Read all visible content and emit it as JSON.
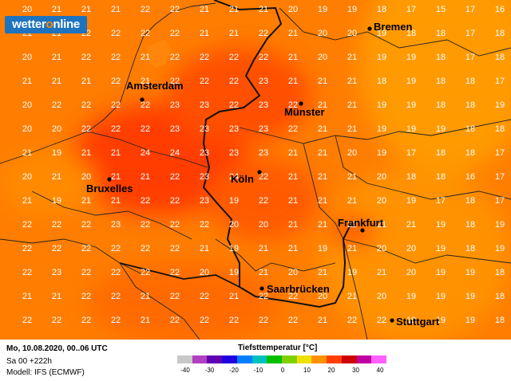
{
  "brand": {
    "prefix": "wetter",
    "accent": "o",
    "suffix": "nline"
  },
  "footer": {
    "date_line": "Mo, 10.08.2020, 00..06 UTC",
    "run_line": "Sa 00 +222h",
    "model_line": "Modell: IFS (ECMWF)"
  },
  "legend": {
    "title": "Tiefsttemperatur [°C]",
    "ticks": [
      "-40",
      "-30",
      "-20",
      "-10",
      "0",
      "10",
      "20",
      "30",
      "40"
    ],
    "colors": [
      "#c8c8c8",
      "#b040c0",
      "#6000b0",
      "#2000e0",
      "#0080ff",
      "#00c0c0",
      "#00c000",
      "#80d000",
      "#f0e000",
      "#ff9000",
      "#ff4000",
      "#d00000",
      "#c000a0",
      "#ff60ff"
    ]
  },
  "cities": [
    {
      "name": "Bremen"
    },
    {
      "name": "Amsterdam"
    },
    {
      "name": "Münster"
    },
    {
      "name": "Köln"
    },
    {
      "name": "Bruxelles"
    },
    {
      "name": "Frankfurt"
    },
    {
      "name": "Saarbrücken"
    },
    {
      "name": "Stuttgart"
    }
  ],
  "grid_values": [
    [
      "20",
      "21",
      "21",
      "21",
      "22",
      "22",
      "21",
      "21",
      "21",
      "20",
      "19",
      "19",
      "18",
      "17",
      "15",
      "17",
      "16"
    ],
    [
      "21",
      "21",
      "22",
      "22",
      "22",
      "22",
      "21",
      "21",
      "22",
      "21",
      "20",
      "20",
      "19",
      "18",
      "18",
      "17",
      "18"
    ],
    [
      "20",
      "21",
      "22",
      "22",
      "21",
      "22",
      "22",
      "22",
      "22",
      "21",
      "20",
      "21",
      "19",
      "19",
      "18",
      "17",
      "18"
    ],
    [
      "21",
      "21",
      "21",
      "22",
      "21",
      "22",
      "22",
      "22",
      "23",
      "21",
      "21",
      "21",
      "18",
      "19",
      "18",
      "18",
      "17"
    ],
    [
      "20",
      "22",
      "22",
      "22",
      "22",
      "23",
      "23",
      "22",
      "23",
      "22",
      "21",
      "21",
      "19",
      "19",
      "18",
      "18",
      "19"
    ],
    [
      "20",
      "20",
      "22",
      "22",
      "22",
      "23",
      "23",
      "23",
      "23",
      "22",
      "21",
      "21",
      "19",
      "19",
      "19",
      "18",
      "18"
    ],
    [
      "21",
      "19",
      "21",
      "21",
      "24",
      "24",
      "23",
      "23",
      "23",
      "21",
      "21",
      "20",
      "19",
      "17",
      "18",
      "18",
      "17"
    ],
    [
      "20",
      "21",
      "20",
      "21",
      "21",
      "22",
      "23",
      "24",
      "22",
      "21",
      "21",
      "21",
      "20",
      "18",
      "18",
      "16",
      "17"
    ],
    [
      "21",
      "19",
      "21",
      "21",
      "22",
      "22",
      "23",
      "19",
      "22",
      "21",
      "21",
      "21",
      "20",
      "19",
      "17",
      "18",
      "17"
    ],
    [
      "22",
      "22",
      "22",
      "23",
      "22",
      "22",
      "22",
      "20",
      "20",
      "21",
      "21",
      "22",
      "21",
      "21",
      "19",
      "18",
      "19"
    ],
    [
      "22",
      "22",
      "22",
      "22",
      "22",
      "22",
      "21",
      "19",
      "21",
      "21",
      "19",
      "21",
      "20",
      "20",
      "19",
      "18",
      "19"
    ],
    [
      "22",
      "23",
      "22",
      "22",
      "22",
      "22",
      "20",
      "19",
      "21",
      "20",
      "21",
      "19",
      "21",
      "20",
      "19",
      "19",
      "18"
    ],
    [
      "21",
      "21",
      "22",
      "22",
      "21",
      "22",
      "22",
      "21",
      "22",
      "22",
      "20",
      "21",
      "20",
      "19",
      "19",
      "19",
      "18"
    ],
    [
      "22",
      "22",
      "22",
      "22",
      "21",
      "22",
      "22",
      "22",
      "22",
      "22",
      "21",
      "22",
      "22",
      "19",
      "19",
      "19",
      "18"
    ]
  ]
}
